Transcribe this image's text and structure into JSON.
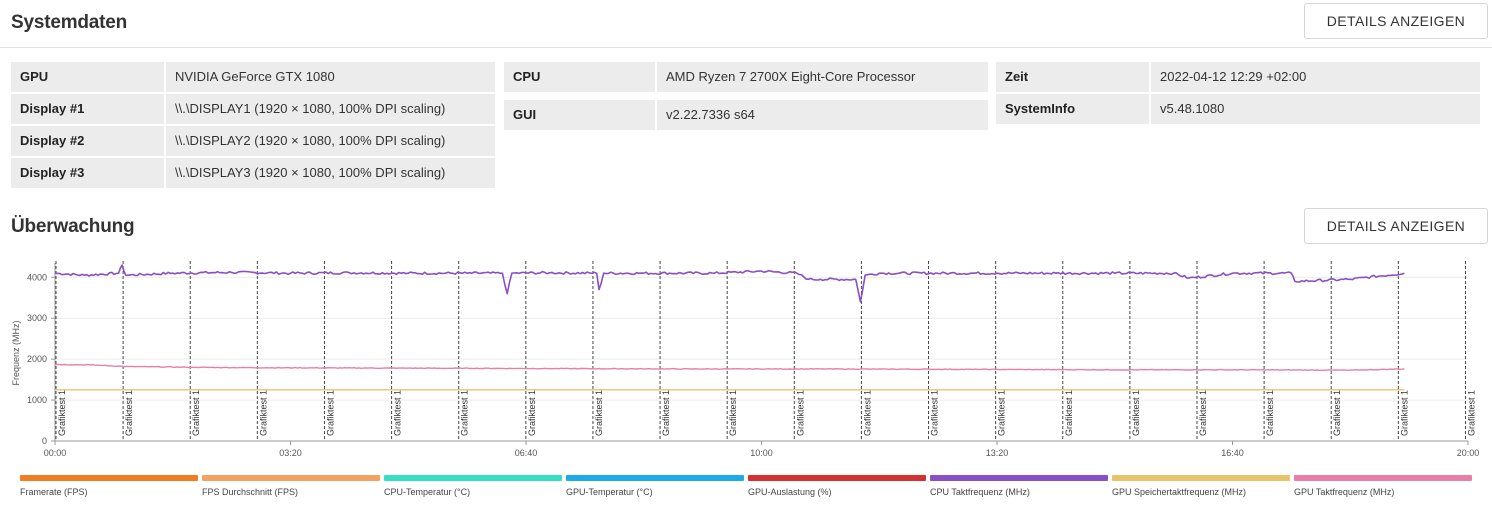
{
  "systemdaten": {
    "title": "Systemdaten",
    "details_label": "DETAILS ANZEIGEN",
    "col1": [
      {
        "key": "GPU",
        "value": "NVIDIA GeForce GTX 1080"
      },
      {
        "key": "Display #1",
        "value": "\\\\.\\DISPLAY1 (1920 × 1080, 100% DPI scaling)"
      },
      {
        "key": "Display #2",
        "value": "\\\\.\\DISPLAY2 (1920 × 1080, 100% DPI scaling)"
      },
      {
        "key": "Display #3",
        "value": "\\\\.\\DISPLAY3 (1920 × 1080, 100% DPI scaling)"
      }
    ],
    "col2": [
      {
        "key": "CPU",
        "value": "AMD Ryzen 7 2700X Eight-Core Processor"
      },
      {
        "key": "GUI",
        "value": "v2.22.7336 s64"
      }
    ],
    "col3": [
      {
        "key": "Zeit",
        "value": "2022-04-12 12:29 +02:00"
      },
      {
        "key": "SystemInfo",
        "value": "v5.48.1080"
      }
    ]
  },
  "ueberwachung": {
    "title": "Überwachung",
    "details_label": "DETAILS ANZEIGEN"
  },
  "chart_data": {
    "type": "line",
    "title": "",
    "xlabel": "",
    "ylabel": "Frequenz (MHz)",
    "xlim_seconds": [
      0,
      1200
    ],
    "ylim": [
      0,
      4300
    ],
    "y_ticks": [
      0,
      1000,
      2000,
      3000,
      4000
    ],
    "x_ticks": [
      "00:00",
      "03:20",
      "06:40",
      "10:00",
      "13:20",
      "16:40",
      "20:00"
    ],
    "marker_label": "Grafiktest 1",
    "marker_times_seconds": [
      0,
      57,
      114,
      171,
      228,
      285,
      342,
      399,
      456,
      513,
      570,
      627,
      684,
      741,
      798,
      855,
      912,
      969,
      1026,
      1083,
      1140,
      1197
    ],
    "series": [
      {
        "name": "CPU Taktfrequenz (MHz)",
        "color": "#8a4fc4",
        "x_seconds": [
          0,
          25,
          54,
          57,
          60,
          100,
          150,
          200,
          250,
          300,
          350,
          380,
          384,
          388,
          420,
          460,
          462,
          466,
          500,
          560,
          600,
          630,
          640,
          650,
          680,
          684,
          688,
          700,
          760,
          800,
          850,
          900,
          950,
          963,
          1000,
          1050,
          1053,
          1100,
          1146
        ],
        "values": [
          4100,
          4050,
          4100,
          4300,
          4050,
          4100,
          4120,
          4100,
          4110,
          4100,
          4100,
          4100,
          3600,
          4100,
          4110,
          4100,
          3700,
          4100,
          4100,
          4100,
          4150,
          4100,
          3950,
          3950,
          3950,
          3400,
          4050,
          4100,
          4100,
          4100,
          4100,
          4100,
          4100,
          3980,
          4100,
          4100,
          3900,
          3950,
          4100
        ]
      },
      {
        "name": "GPU Taktfrequenz (MHz)",
        "color": "#e87fa8",
        "x_seconds": [
          0,
          30,
          60,
          120,
          180,
          300,
          420,
          540,
          660,
          780,
          900,
          1000,
          1100,
          1146
        ],
        "values": [
          1870,
          1860,
          1820,
          1800,
          1790,
          1780,
          1770,
          1760,
          1760,
          1750,
          1740,
          1740,
          1730,
          1760
        ]
      },
      {
        "name": "GPU Speichertaktfrequenz (MHz)",
        "color": "#e8c36a",
        "x_seconds": [
          0,
          1146
        ],
        "values": [
          1251,
          1251
        ]
      }
    ],
    "legend": [
      {
        "name": "Framerate (FPS)",
        "color": "#f07d22"
      },
      {
        "name": "FPS Durchschnitt (FPS)",
        "color": "#f4a261"
      },
      {
        "name": "CPU-Temperatur (°C)",
        "color": "#35e0c0"
      },
      {
        "name": "GPU-Temperatur (°C)",
        "color": "#1eaae8"
      },
      {
        "name": "GPU-Auslastung (%)",
        "color": "#d43232"
      },
      {
        "name": "CPU Taktfrequenz (MHz)",
        "color": "#8a4fc4"
      },
      {
        "name": "GPU Speichertaktfrequenz (MHz)",
        "color": "#e8c36a"
      },
      {
        "name": "GPU Taktfrequenz (MHz)",
        "color": "#e87fa8"
      }
    ]
  }
}
